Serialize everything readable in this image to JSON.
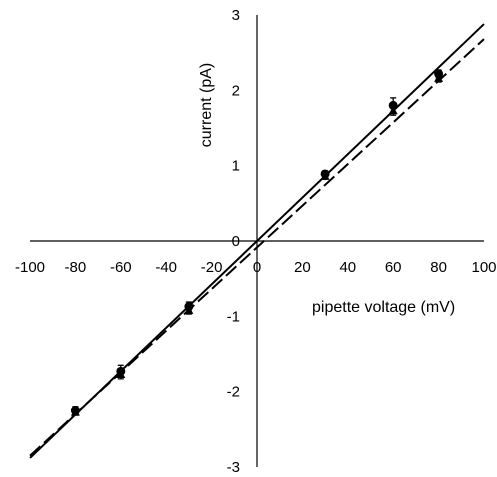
{
  "chart_data": {
    "type": "scatter",
    "xlabel": "pipette voltage (mV)",
    "ylabel": "current (pA)",
    "xlim": [
      -100,
      100
    ],
    "ylim": [
      -3,
      3
    ],
    "x_ticks": [
      "-100",
      "-80",
      "-60",
      "-40",
      "-20",
      "0",
      "20",
      "40",
      "60",
      "80",
      "100"
    ],
    "y_ticks": [
      "3",
      "2",
      "1",
      "0",
      "-1",
      "-2",
      "-3"
    ],
    "grid": false,
    "series": [
      {
        "marker": "circle",
        "line_style": "solid",
        "points": [
          {
            "x": -80,
            "y": -2.25,
            "err": 0.05
          },
          {
            "x": -60,
            "y": -1.73,
            "err": 0.08
          },
          {
            "x": -30,
            "y": -0.87,
            "err": 0.06
          },
          {
            "x": 30,
            "y": 0.89,
            "err": 0.04
          },
          {
            "x": 60,
            "y": 1.8,
            "err": 0.1
          },
          {
            "x": 80,
            "y": 2.22,
            "err": 0.05
          }
        ],
        "fit": {
          "x": [
            -100,
            100
          ],
          "y": [
            -2.88,
            2.88
          ]
        }
      },
      {
        "marker": "triangle",
        "line_style": "dashed",
        "points": [
          {
            "x": -80,
            "y": -2.27,
            "err": 0.04
          },
          {
            "x": -60,
            "y": -1.77,
            "err": 0.06
          },
          {
            "x": -30,
            "y": -0.92,
            "err": 0.05
          },
          {
            "x": 30,
            "y": 0.86,
            "err": 0.04
          },
          {
            "x": 60,
            "y": 1.73,
            "err": 0.06
          },
          {
            "x": 80,
            "y": 2.16,
            "err": 0.05
          }
        ],
        "fit": {
          "x": [
            -100,
            100
          ],
          "y": [
            -2.85,
            2.68
          ]
        }
      }
    ]
  }
}
